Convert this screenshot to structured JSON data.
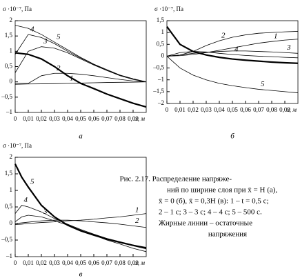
{
  "chart_data": [
    {
      "type": "line",
      "ylabel": "σ ·10⁻⁷, Па",
      "xlabel": "x, м",
      "panel": "а",
      "x": [
        0,
        0.01,
        0.02,
        0.03,
        0.04,
        0.05,
        0.06,
        0.07,
        0.08,
        0.09,
        0.1
      ],
      "xlim": [
        0,
        0.1
      ],
      "ylim": [
        -1,
        2
      ],
      "xticks": [
        0,
        {
          "value": 0.01,
          "label": "0,01"
        },
        {
          "value": 0.02,
          "label": "0,02"
        },
        {
          "value": 0.03,
          "label": "0,03"
        },
        {
          "value": 0.04,
          "label": "0,04"
        },
        {
          "value": 0.05,
          "label": "0,05"
        },
        {
          "value": 0.06,
          "label": "0,06"
        },
        {
          "value": 0.07,
          "label": "0,07"
        },
        {
          "value": 0.08,
          "label": "0,08"
        },
        {
          "value": 0.09,
          "label": "0,09"
        }
      ],
      "yticks": [
        {
          "value": -1,
          "label": "–1"
        },
        {
          "value": -0.5,
          "label": "–0,5"
        },
        0,
        {
          "value": 0.5,
          "label": "0,5"
        },
        1,
        {
          "value": 1.5,
          "label": "1,5"
        },
        2
      ],
      "series": [
        {
          "name": "1",
          "color": "#000",
          "values": [
            -0.08,
            -0.07,
            -0.065,
            -0.06,
            -0.05,
            -0.04,
            -0.03,
            -0.02,
            -0.015,
            -0.01,
            0
          ]
        },
        {
          "name": "2",
          "color": "#000",
          "values": [
            -0.05,
            -0.05,
            0.2,
            0.28,
            0.28,
            0.25,
            0.2,
            0.14,
            0.08,
            0.03,
            0
          ]
        },
        {
          "name": "3",
          "color": "#000",
          "values": [
            0.3,
            1.0,
            1.15,
            1.1,
            0.95,
            0.75,
            0.55,
            0.37,
            0.2,
            0.08,
            0
          ]
        },
        {
          "name": "4",
          "color": "#000",
          "values": [
            0.9,
            1.55,
            1.45,
            1.25,
            1.0,
            0.78,
            0.57,
            0.38,
            0.22,
            0.1,
            0
          ]
        },
        {
          "name": "5",
          "color": "#000",
          "values": [
            1.85,
            1.75,
            1.55,
            1.3,
            1.05,
            0.8,
            0.58,
            0.4,
            0.22,
            0.1,
            0
          ]
        },
        {
          "color": "#000",
          "thick": true,
          "values": [
            0.95,
            0.9,
            0.75,
            0.5,
            0.2,
            -0.05,
            -0.22,
            -0.4,
            -0.55,
            -0.7,
            -0.82
          ]
        }
      ]
    },
    {
      "type": "line",
      "ylabel": "σ ·10⁻⁷, Па",
      "xlabel": "x, м",
      "panel": "б",
      "x": [
        0,
        0.01,
        0.02,
        0.03,
        0.04,
        0.05,
        0.06,
        0.07,
        0.08,
        0.09,
        0.1
      ],
      "xlim": [
        0,
        0.1
      ],
      "ylim": [
        -2,
        1.5
      ],
      "xticks": [
        0,
        {
          "value": 0.01,
          "label": "0,01"
        },
        {
          "value": 0.02,
          "label": "0,02"
        },
        {
          "value": 0.03,
          "label": "0,03"
        },
        {
          "value": 0.04,
          "label": "0,04"
        },
        {
          "value": 0.05,
          "label": "0,05"
        },
        {
          "value": 0.06,
          "label": "0,06"
        },
        {
          "value": 0.07,
          "label": "0,07"
        },
        {
          "value": 0.08,
          "label": "0,08"
        },
        {
          "value": 0.09,
          "label": "0,09"
        }
      ],
      "yticks": [
        {
          "value": -2,
          "label": "–2"
        },
        {
          "value": -1.5,
          "label": "–1,5"
        },
        {
          "value": -1,
          "label": "–1"
        },
        {
          "value": -0.5,
          "label": "–0,5"
        },
        0,
        {
          "value": 0.5,
          "label": "0,5"
        },
        1,
        {
          "value": 1.5,
          "label": "1,5"
        }
      ],
      "series": [
        {
          "name": "1",
          "color": "#000",
          "values": [
            0,
            0.02,
            0.07,
            0.15,
            0.25,
            0.35,
            0.45,
            0.55,
            0.62,
            0.68,
            0.72
          ]
        },
        {
          "name": "2",
          "color": "#000",
          "values": [
            0,
            0.05,
            0.2,
            0.45,
            0.65,
            0.8,
            0.9,
            0.97,
            1.0,
            1.03,
            1.05
          ]
        },
        {
          "name": "3",
          "color": "#000",
          "values": [
            0,
            0.05,
            0.12,
            0.16,
            0.2,
            0.22,
            0.22,
            0.2,
            0.18,
            0.15,
            0.12
          ]
        },
        {
          "name": "4",
          "color": "#000",
          "values": [
            0,
            0.15,
            0.2,
            0.18,
            0.12,
            0.07,
            0.03,
            0,
            -0.02,
            -0.05,
            -0.07
          ]
        },
        {
          "name": "5",
          "color": "#000",
          "values": [
            0,
            -0.5,
            -0.8,
            -1.0,
            -1.15,
            -1.25,
            -1.33,
            -1.4,
            -1.45,
            -1.5,
            -1.55
          ]
        },
        {
          "color": "#000",
          "thick": true,
          "values": [
            1.25,
            0.5,
            0.2,
            0.05,
            -0.05,
            -0.12,
            -0.17,
            -0.21,
            -0.25,
            -0.28,
            -0.3
          ]
        }
      ]
    },
    {
      "type": "line",
      "ylabel": "σ ·10⁻⁷, Па",
      "xlabel": "x, м",
      "panel": "в",
      "x": [
        0,
        0.005,
        0.01,
        0.02,
        0.03,
        0.04,
        0.05,
        0.06,
        0.07,
        0.08,
        0.09,
        0.1
      ],
      "xlim": [
        0,
        0.1
      ],
      "ylim": [
        -1,
        2
      ],
      "xticks": [
        0,
        {
          "value": 0.01,
          "label": "0,01"
        },
        {
          "value": 0.02,
          "label": "0,02"
        },
        {
          "value": 0.03,
          "label": "0,03"
        },
        {
          "value": 0.04,
          "label": "0,04"
        },
        {
          "value": 0.05,
          "label": "0,05"
        },
        {
          "value": 0.06,
          "label": "0,06"
        },
        {
          "value": 0.07,
          "label": "0,07"
        },
        {
          "value": 0.08,
          "label": "0,08"
        },
        {
          "value": 0.09,
          "label": "0,09"
        }
      ],
      "yticks": [
        {
          "value": -1,
          "label": "–1"
        },
        {
          "value": -0.5,
          "label": "–0,5"
        },
        0,
        {
          "value": 0.5,
          "label": "0,5"
        },
        1,
        {
          "value": 1.5,
          "label": "1,5"
        },
        2
      ],
      "series": [
        {
          "name": "1",
          "color": "#000",
          "values": [
            -0.03,
            -0.02,
            0,
            0.03,
            0.05,
            0.08,
            0.1,
            0.13,
            0.17,
            0.2,
            0.25,
            0.3
          ]
        },
        {
          "name": "2",
          "color": "#000",
          "values": [
            0,
            0.02,
            0.04,
            0.08,
            0.1,
            0.1,
            0.08,
            0.05,
            0.02,
            -0.02,
            -0.07,
            -0.12
          ]
        },
        {
          "name": "3",
          "color": "#000",
          "values": [
            0.05,
            0.2,
            0.25,
            0.2,
            0.08,
            -0.05,
            -0.2,
            -0.35,
            -0.5,
            -0.62,
            -0.75,
            -0.85
          ]
        },
        {
          "name": "4",
          "color": "#000",
          "values": [
            0.3,
            0.55,
            0.5,
            0.35,
            0.15,
            -0.02,
            -0.18,
            -0.32,
            -0.45,
            -0.55,
            -0.65,
            -0.72
          ]
        },
        {
          "name": "5",
          "color": "#000",
          "thick": true,
          "values": [
            1.8,
            1.4,
            1.1,
            0.55,
            0.2,
            -0.05,
            -0.22,
            -0.35,
            -0.47,
            -0.57,
            -0.66,
            -0.75
          ]
        }
      ]
    }
  ],
  "caption": [
    "Рис. 2.17. Распределение напряже-",
    "ний по ширине слоя при x̄ = H (а),",
    "x̄ = 0 (б), x̄ = 0,3H (в): 1 – t = 0,5 с;",
    "2 – 1 с; 3 – 3 с; 4 – 4 с; 5 – 500 с.",
    "Жирные линии – остаточные",
    "напряжения"
  ]
}
